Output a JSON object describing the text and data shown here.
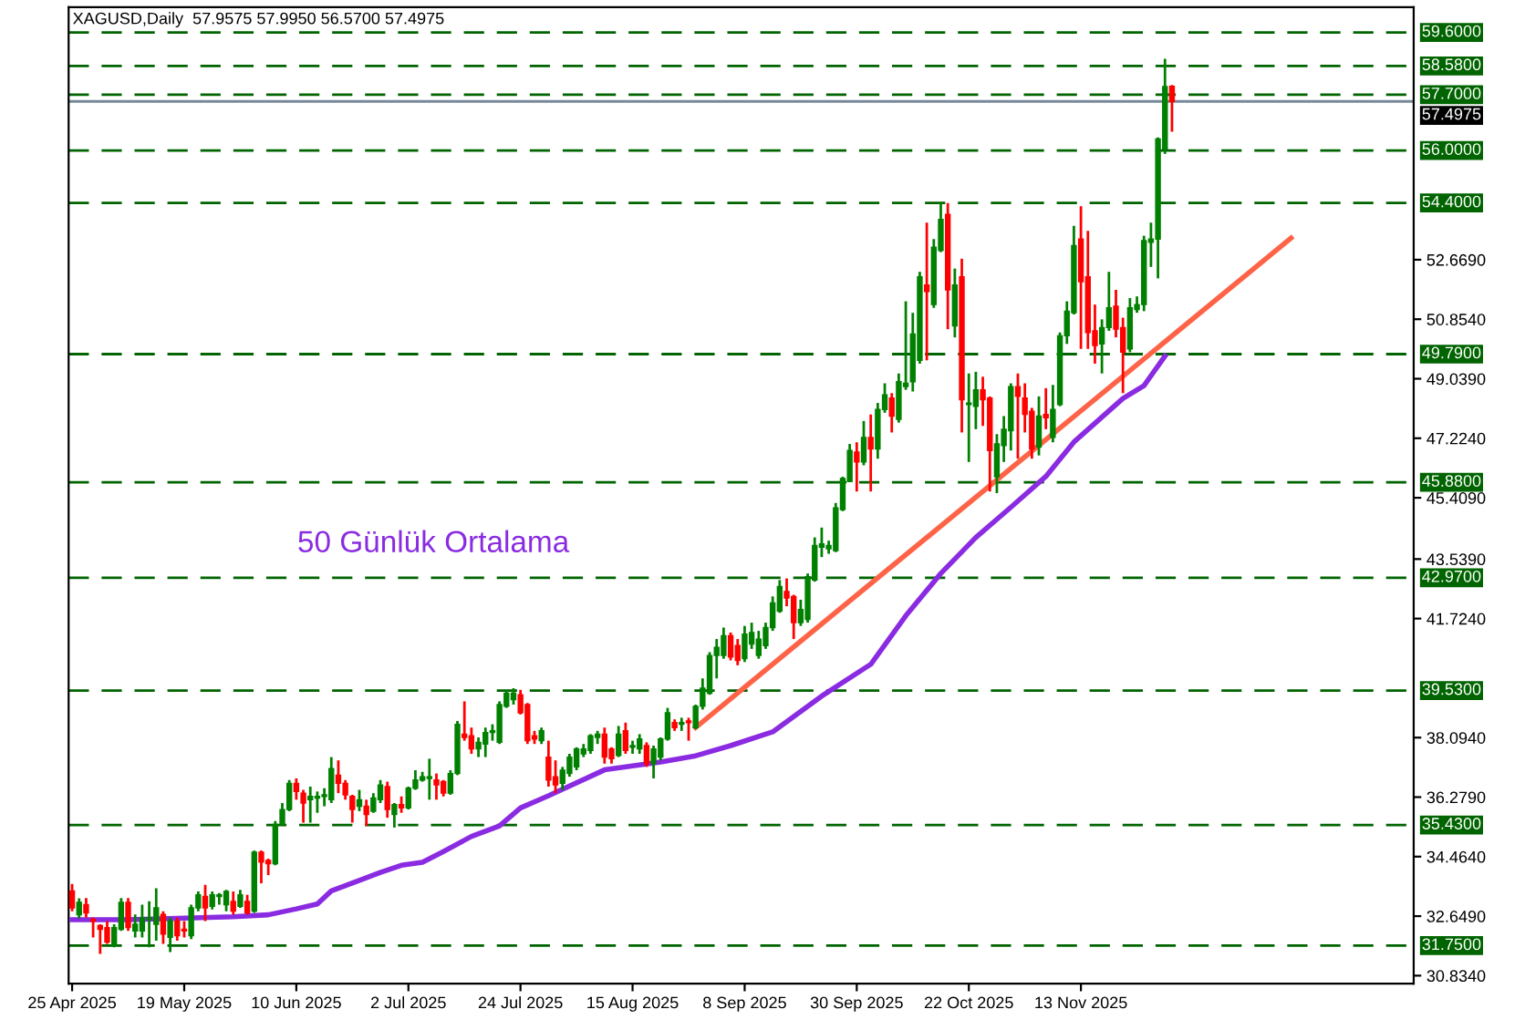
{
  "chart_data": {
    "type": "candlestick",
    "title": "XAGUSD,Daily  57.9575 57.9950 56.5700 57.4975",
    "categories": [
      "25 Apr 2025",
      null,
      null,
      null,
      null,
      null,
      null,
      null,
      null,
      null,
      null,
      null,
      null,
      null,
      null,
      null,
      "19 May 2025",
      null,
      null,
      null,
      null,
      null,
      null,
      null,
      null,
      null,
      null,
      null,
      null,
      null,
      null,
      null,
      "10 Jun 2025",
      null,
      null,
      null,
      null,
      null,
      null,
      null,
      null,
      null,
      null,
      null,
      null,
      null,
      null,
      null,
      "2 Jul 2025",
      null,
      null,
      null,
      null,
      null,
      null,
      null,
      null,
      null,
      null,
      null,
      null,
      null,
      null,
      null,
      "24 Jul 2025",
      null,
      null,
      null,
      null,
      null,
      null,
      null,
      null,
      null,
      null,
      null,
      null,
      null,
      null,
      null,
      "15 Aug 2025",
      null,
      null,
      null,
      null,
      null,
      null,
      null,
      null,
      null,
      null,
      null,
      null,
      null,
      null,
      null,
      "8 Sep 2025",
      null,
      null,
      null,
      null,
      null,
      null,
      null,
      null,
      null,
      null,
      null,
      null,
      null,
      null,
      null,
      "30 Sep 2025",
      null,
      null,
      null,
      null,
      null,
      null,
      null,
      null,
      null,
      null,
      null,
      null,
      null,
      null,
      null,
      "22 Oct 2025",
      null,
      null,
      null,
      null,
      null,
      null,
      null,
      null,
      null,
      null,
      null,
      null,
      null,
      null,
      null,
      "13 Nov 2025",
      null,
      null,
      null,
      null,
      null,
      null,
      null,
      null,
      null,
      null,
      null,
      null,
      null,
      null,
      null,
      null,
      null,
      null,
      null,
      null,
      null,
      null,
      null,
      null,
      null,
      null,
      null,
      null,
      null,
      null,
      null,
      null,
      null,
      null,
      null,
      null,
      null,
      null,
      null,
      null,
      null,
      null,
      null,
      null,
      null,
      null,
      null
    ],
    "colors": [
      "#ff0000",
      "#008000",
      "#ff0000",
      "#ff0000",
      "#ff0000",
      "#ff0000",
      "#008000",
      "#008000",
      "#ff0000",
      "#008000",
      "#008000",
      "#008000",
      "#008000",
      "#ff0000",
      "#008000",
      "#ff0000",
      "#ff0000",
      "#008000",
      "#008000",
      "#ff0000",
      "#008000",
      "#008000",
      "#008000",
      "#ff0000",
      "#008000",
      "#ff0000",
      "#008000",
      "#ff0000",
      "#ff0000",
      "#008000",
      "#008000",
      "#008000",
      "#ff0000",
      "#ff0000",
      "#008000",
      "#008000",
      "#008000",
      "#008000",
      "#ff0000",
      "#ff0000",
      "#ff0000",
      "#008000",
      "#ff0000",
      "#008000",
      "#008000",
      "#ff0000",
      "#008000",
      "#ff0000",
      "#008000",
      "#008000",
      "#008000",
      "#008000",
      "#ff0000",
      "#ff0000",
      "#008000",
      "#008000",
      "#ff0000",
      "#ff0000",
      "#008000",
      "#008000",
      "#008000",
      "#008000",
      "#008000",
      "#008000",
      "#ff0000",
      "#ff0000",
      "#ff0000",
      "#008000",
      "#ff0000",
      "#ff0000",
      "#008000",
      "#008000",
      "#008000",
      "#008000",
      "#008000",
      "#008000",
      "#ff0000",
      "#ff0000",
      "#008000",
      "#ff0000",
      "#008000",
      "#008000",
      "#ff0000",
      "#008000",
      "#008000",
      "#008000",
      "#ff0000",
      "#008000",
      "#ff0000",
      "#008000",
      "#008000",
      "#008000",
      "#008000",
      "#008000",
      "#ff0000",
      "#ff0000",
      "#008000",
      "#008000",
      "#008000",
      "#008000",
      "#008000",
      "#008000",
      "#ff0000",
      "#ff0000",
      "#008000",
      "#008000",
      "#008000",
      "#008000",
      "#008000",
      "#008000",
      "#008000",
      "#008000",
      "#ff0000",
      "#008000",
      "#ff0000",
      "#008000",
      "#008000",
      "#ff0000",
      "#008000",
      "#008000",
      "#008000",
      "#008000",
      "#ff0000",
      "#008000",
      "#008000",
      "#ff0000",
      "#008000",
      "#ff0000",
      "#008000",
      "#008000",
      "#ff0000",
      "#ff0000",
      "#008000",
      "#008000",
      "#008000",
      "#ff0000",
      "#ff0000",
      "#ff0000",
      "#008000",
      "#ff0000",
      "#008000",
      "#008000",
      "#008000",
      "#008000",
      "#ff0000",
      "#ff0000",
      "#ff0000",
      "#008000",
      "#008000",
      "#ff0000",
      "#ff0000",
      "#008000",
      "#008000",
      "#008000",
      "#008000",
      "#008000",
      "#008000",
      "#ff0000",
      null,
      null,
      null,
      null,
      null,
      null,
      null,
      null,
      null,
      null,
      null,
      null,
      null,
      null,
      null,
      null,
      null,
      null,
      null,
      null,
      null,
      null,
      null,
      null,
      null,
      null,
      null,
      null,
      null,
      null,
      null,
      null,
      null,
      null
    ],
    "ohlc": [
      [
        33.42,
        33.63,
        32.8,
        32.9
      ],
      [
        32.69,
        33.19,
        32.58,
        33.07
      ],
      [
        33.0,
        33.2,
        32.6,
        32.75
      ],
      [
        32.55,
        32.6,
        32.0,
        32.5
      ],
      [
        32.36,
        32.4,
        31.5,
        32.25
      ],
      [
        32.3,
        32.5,
        31.8,
        31.86
      ],
      [
        31.75,
        32.4,
        31.7,
        32.3
      ],
      [
        32.25,
        33.2,
        32.2,
        33.07
      ],
      [
        33.07,
        33.2,
        32.2,
        32.3
      ],
      [
        32.2,
        32.7,
        32.0,
        32.4
      ],
      [
        32.2,
        33.0,
        32.0,
        32.6
      ],
      [
        32.55,
        33.1,
        31.7,
        32.6
      ],
      [
        32.4,
        33.5,
        31.9,
        32.9
      ],
      [
        32.7,
        32.8,
        31.8,
        32.1
      ],
      [
        32.0,
        32.6,
        31.55,
        32.5
      ],
      [
        32.5,
        32.6,
        31.9,
        32.05
      ],
      [
        32.25,
        32.5,
        32.0,
        32.2
      ],
      [
        32.05,
        33.0,
        31.95,
        32.9
      ],
      [
        32.9,
        33.4,
        32.8,
        33.3
      ],
      [
        33.25,
        33.6,
        32.5,
        32.9
      ],
      [
        32.95,
        33.4,
        32.85,
        33.3
      ],
      [
        33.25,
        33.35,
        33.0,
        33.3
      ],
      [
        33.0,
        33.45,
        32.8,
        33.4
      ],
      [
        33.1,
        33.4,
        32.7,
        32.8
      ],
      [
        32.95,
        33.45,
        32.9,
        33.3
      ],
      [
        33.1,
        33.3,
        32.7,
        32.75
      ],
      [
        32.8,
        34.65,
        32.75,
        34.6
      ],
      [
        34.6,
        34.65,
        33.65,
        34.3
      ],
      [
        34.35,
        34.4,
        33.9,
        34.25
      ],
      [
        34.25,
        35.55,
        34.2,
        35.45
      ],
      [
        35.45,
        36.1,
        35.45,
        35.9
      ],
      [
        35.9,
        36.8,
        35.85,
        36.7
      ],
      [
        36.7,
        36.85,
        36.2,
        36.45
      ],
      [
        36.4,
        36.5,
        35.5,
        36.1
      ],
      [
        36.2,
        36.6,
        35.5,
        36.3
      ],
      [
        36.25,
        36.45,
        35.8,
        36.3
      ],
      [
        36.3,
        36.55,
        36.0,
        36.35
      ],
      [
        36.2,
        37.5,
        36.1,
        37.15
      ],
      [
        36.95,
        37.4,
        36.4,
        36.7
      ],
      [
        36.7,
        36.8,
        36.2,
        36.35
      ],
      [
        36.3,
        36.35,
        35.5,
        35.9
      ],
      [
        36.0,
        36.5,
        35.85,
        36.2
      ],
      [
        36.0,
        36.2,
        35.4,
        35.75
      ],
      [
        35.85,
        36.4,
        35.8,
        36.25
      ],
      [
        36.2,
        36.8,
        36.1,
        36.65
      ],
      [
        36.6,
        36.75,
        35.65,
        35.9
      ],
      [
        35.75,
        36.1,
        35.35,
        36.05
      ],
      [
        36.05,
        36.3,
        35.8,
        35.95
      ],
      [
        35.95,
        36.6,
        35.9,
        36.55
      ],
      [
        36.55,
        37.1,
        36.5,
        36.8
      ],
      [
        36.8,
        37.05,
        36.75,
        36.9
      ],
      [
        36.85,
        37.45,
        36.2,
        36.9
      ],
      [
        36.8,
        37.0,
        36.2,
        36.65
      ],
      [
        36.75,
        36.8,
        36.3,
        36.4
      ],
      [
        36.4,
        37.1,
        36.35,
        37.0
      ],
      [
        37.0,
        38.6,
        36.95,
        38.5
      ],
      [
        38.2,
        39.2,
        38.0,
        38.1
      ],
      [
        38.15,
        38.4,
        37.6,
        37.75
      ],
      [
        37.75,
        38.1,
        37.5,
        37.95
      ],
      [
        37.9,
        38.4,
        37.5,
        38.25
      ],
      [
        38.25,
        38.5,
        38.0,
        38.3
      ],
      [
        37.95,
        39.2,
        37.9,
        39.1
      ],
      [
        39.05,
        39.55,
        39.0,
        39.45
      ],
      [
        39.25,
        39.6,
        39.1,
        39.45
      ],
      [
        39.4,
        39.55,
        38.8,
        38.85
      ],
      [
        39.1,
        39.15,
        37.9,
        38.0
      ],
      [
        38.15,
        38.3,
        37.9,
        38.05
      ],
      [
        38.0,
        38.4,
        37.9,
        38.3
      ],
      [
        37.5,
        38.0,
        36.6,
        36.8
      ],
      [
        36.9,
        37.4,
        36.4,
        36.65
      ],
      [
        36.7,
        37.2,
        36.5,
        37.1
      ],
      [
        37.0,
        37.6,
        36.9,
        37.5
      ],
      [
        37.2,
        37.8,
        37.1,
        37.75
      ],
      [
        37.6,
        37.9,
        37.5,
        37.75
      ],
      [
        37.7,
        38.2,
        37.6,
        38.15
      ],
      [
        38.1,
        38.3,
        37.9,
        38.2
      ],
      [
        38.2,
        38.4,
        37.3,
        37.5
      ],
      [
        37.75,
        37.8,
        37.3,
        37.45
      ],
      [
        37.55,
        38.45,
        37.5,
        38.2
      ],
      [
        38.3,
        38.55,
        37.6,
        37.7
      ],
      [
        37.8,
        38.0,
        37.6,
        37.85
      ],
      [
        37.75,
        38.2,
        37.6,
        38.05
      ],
      [
        37.85,
        37.95,
        37.2,
        37.3
      ],
      [
        37.3,
        37.85,
        36.85,
        37.75
      ],
      [
        37.5,
        38.1,
        37.4,
        38.05
      ],
      [
        38.05,
        39.0,
        38.0,
        38.85
      ],
      [
        38.55,
        38.65,
        38.3,
        38.4
      ],
      [
        38.5,
        38.7,
        38.3,
        38.55
      ],
      [
        38.6,
        38.7,
        38.0,
        38.55
      ],
      [
        38.4,
        39.1,
        38.35,
        39.05
      ],
      [
        39.05,
        39.9,
        38.95,
        39.6
      ],
      [
        39.45,
        40.7,
        39.4,
        40.6
      ],
      [
        40.6,
        41.1,
        39.9,
        40.85
      ],
      [
        40.6,
        41.45,
        40.5,
        41.2
      ],
      [
        41.2,
        41.3,
        40.45,
        40.55
      ],
      [
        40.9,
        41.1,
        40.3,
        40.45
      ],
      [
        40.5,
        41.5,
        40.4,
        41.25
      ],
      [
        40.95,
        41.6,
        40.8,
        41.3
      ],
      [
        40.6,
        41.35,
        40.5,
        41.1
      ],
      [
        40.9,
        41.6,
        40.8,
        41.45
      ],
      [
        41.45,
        42.4,
        41.35,
        42.2
      ],
      [
        41.95,
        42.9,
        41.9,
        42.7
      ],
      [
        42.55,
        42.95,
        42.1,
        42.35
      ],
      [
        42.4,
        42.45,
        41.1,
        41.6
      ],
      [
        41.6,
        42.3,
        41.5,
        42.0
      ],
      [
        41.7,
        43.1,
        41.6,
        43.0
      ],
      [
        42.9,
        44.2,
        42.85,
        43.95
      ],
      [
        43.9,
        44.5,
        43.6,
        44.0
      ],
      [
        43.85,
        44.1,
        43.7,
        43.95
      ],
      [
        43.8,
        45.25,
        43.75,
        45.1
      ],
      [
        45.05,
        46.05,
        45.0,
        46.0
      ],
      [
        45.9,
        47.05,
        45.9,
        46.85
      ],
      [
        46.8,
        47.1,
        45.6,
        46.5
      ],
      [
        46.5,
        47.75,
        46.4,
        47.25
      ],
      [
        47.25,
        47.95,
        45.6,
        46.9
      ],
      [
        46.9,
        48.3,
        46.6,
        48.1
      ],
      [
        48.1,
        48.9,
        48.0,
        48.55
      ],
      [
        48.45,
        48.6,
        47.4,
        47.9
      ],
      [
        47.8,
        49.2,
        47.7,
        48.95
      ],
      [
        48.8,
        51.4,
        48.7,
        48.9
      ],
      [
        48.95,
        51.05,
        48.65,
        50.4
      ],
      [
        49.6,
        52.3,
        49.5,
        52.15
      ],
      [
        51.9,
        53.8,
        49.6,
        51.7
      ],
      [
        51.3,
        53.3,
        51.2,
        53.05
      ],
      [
        52.95,
        54.4,
        52.9,
        53.9
      ],
      [
        54.05,
        54.4,
        50.55,
        51.75
      ],
      [
        50.65,
        52.4,
        50.3,
        51.9
      ],
      [
        52.15,
        52.7,
        47.4,
        48.4
      ],
      [
        48.25,
        49.2,
        46.5,
        48.3
      ],
      [
        48.2,
        49.25,
        47.5,
        48.7
      ],
      [
        48.7,
        49.1,
        47.6,
        48.4
      ],
      [
        48.45,
        48.5,
        45.6,
        46.85
      ],
      [
        46.05,
        47.35,
        45.55,
        47.05
      ],
      [
        47.0,
        47.9,
        46.5,
        47.5
      ],
      [
        47.45,
        48.9,
        46.85,
        48.8
      ],
      [
        48.8,
        49.2,
        46.6,
        48.5
      ],
      [
        48.45,
        48.9,
        47.4,
        47.95
      ],
      [
        48.05,
        48.15,
        46.6,
        46.9
      ],
      [
        46.95,
        48.5,
        46.7,
        47.9
      ],
      [
        47.95,
        48.75,
        47.5,
        47.85
      ],
      [
        47.25,
        48.85,
        47.1,
        48.1
      ],
      [
        48.25,
        50.45,
        48.2,
        50.35
      ],
      [
        50.35,
        51.4,
        50.1,
        51.1
      ],
      [
        51.05,
        53.7,
        51.0,
        53.1
      ],
      [
        53.3,
        54.3,
        49.95,
        52.0
      ],
      [
        52.15,
        53.55,
        49.95,
        50.45
      ],
      [
        50.5,
        51.3,
        49.5,
        50.05
      ],
      [
        50.1,
        50.85,
        49.2,
        50.6
      ],
      [
        50.6,
        52.3,
        50.5,
        51.2
      ],
      [
        51.25,
        51.75,
        50.3,
        50.55
      ],
      [
        50.6,
        50.9,
        48.6,
        49.85
      ],
      [
        49.95,
        51.5,
        49.85,
        51.2
      ],
      [
        51.15,
        51.55,
        51.05,
        51.3
      ],
      [
        51.3,
        53.4,
        51.1,
        53.25
      ],
      [
        53.2,
        53.8,
        52.45,
        53.3
      ],
      [
        53.3,
        56.4,
        52.1,
        56.35
      ],
      [
        56.05,
        58.8,
        55.9,
        57.95
      ],
      [
        57.9575,
        57.995,
        56.57,
        57.4975
      ],
      null,
      null,
      null,
      null,
      null,
      null,
      null,
      null,
      null,
      null,
      null,
      null,
      null,
      null,
      null,
      null,
      null,
      null,
      null,
      null,
      null,
      null,
      null,
      null,
      null,
      null,
      null,
      null,
      null,
      null,
      null,
      null,
      null,
      null
    ],
    "series": [
      {
        "type": "line",
        "name": "50 Günlük Ortalama",
        "color": "#8a2be2",
        "values": [
          32.54,
          null,
          null,
          null,
          null,
          null,
          null,
          null,
          32.54,
          null,
          null,
          null,
          null,
          null,
          null,
          null,
          null,
          null,
          null,
          null,
          null,
          null,
          null,
          32.63,
          null,
          null,
          null,
          null,
          32.69,
          null,
          null,
          null,
          32.87,
          null,
          null,
          33.02,
          null,
          33.42,
          null,
          null,
          null,
          33.74,
          null,
          null,
          33.98,
          null,
          null,
          34.2,
          null,
          null,
          34.29,
          null,
          null,
          34.62,
          null,
          null,
          null,
          35.08,
          null,
          null,
          null,
          35.4,
          null,
          null,
          35.95,
          null,
          null,
          null,
          36.32,
          null,
          null,
          null,
          null,
          null,
          null,
          null,
          37.11,
          null,
          null,
          null,
          null,
          null,
          null,
          null,
          37.35,
          null,
          null,
          null,
          null,
          37.54,
          null,
          null,
          null,
          null,
          37.85,
          null,
          null,
          null,
          null,
          null,
          38.27,
          null,
          null,
          null,
          null,
          null,
          null,
          39.36,
          null,
          null,
          null,
          null,
          null,
          null,
          40.33,
          null,
          null,
          null,
          null,
          41.81,
          null,
          null,
          null,
          null,
          43.1,
          null,
          null,
          null,
          null,
          44.2,
          null,
          null,
          null,
          null,
          45.12,
          null,
          null,
          null,
          null,
          46.06,
          null,
          null,
          null,
          47.11,
          null,
          null,
          null,
          null,
          null,
          null,
          48.44,
          null,
          null,
          48.83,
          null,
          null,
          49.73,
          null,
          null,
          null,
          null,
          null,
          null,
          null,
          null,
          null,
          null,
          null,
          null,
          null,
          null,
          null,
          null,
          null,
          null,
          null,
          null,
          null,
          null,
          null,
          null,
          null,
          null,
          null,
          null,
          null,
          null,
          null,
          null,
          null,
          null,
          null
        ]
      },
      {
        "type": "line",
        "color": "#ff6347",
        "values": [
          null,
          null,
          null,
          null,
          null,
          null,
          null,
          null,
          null,
          null,
          null,
          null,
          null,
          null,
          null,
          null,
          null,
          null,
          null,
          null,
          null,
          null,
          null,
          null,
          null,
          null,
          null,
          null,
          null,
          null,
          null,
          null,
          null,
          null,
          null,
          null,
          null,
          null,
          null,
          null,
          null,
          null,
          null,
          null,
          null,
          null,
          null,
          null,
          null,
          null,
          null,
          null,
          null,
          null,
          null,
          null,
          null,
          null,
          null,
          null,
          null,
          null,
          null,
          null,
          null,
          null,
          null,
          null,
          null,
          null,
          null,
          null,
          null,
          null,
          null,
          null,
          null,
          null,
          null,
          null,
          null,
          null,
          null,
          null,
          null,
          null,
          null,
          null,
          null,
          38.4,
          null,
          null,
          null,
          null,
          null,
          null,
          null,
          null,
          null,
          null,
          null,
          null,
          null,
          null,
          null,
          null,
          null,
          null,
          null,
          null,
          null,
          null,
          null,
          null,
          null,
          null,
          null,
          null,
          null,
          null,
          null,
          null,
          null,
          null,
          null,
          null,
          null,
          null,
          null,
          null,
          null,
          null,
          null,
          null,
          null,
          null,
          null,
          null,
          null,
          null,
          null,
          null,
          null,
          null,
          null,
          null,
          null,
          null,
          null,
          null,
          null,
          null,
          null,
          null,
          null,
          null,
          null,
          null,
          null,
          null,
          null,
          null,
          null,
          null,
          null,
          null,
          null,
          null,
          null,
          null,
          null,
          null,
          null,
          null,
          53.33,
          null,
          null,
          null,
          null,
          null,
          null,
          null,
          null,
          null,
          null,
          null,
          null,
          null,
          null,
          null,
          null,
          null
        ]
      }
    ],
    "ylim": [
      30.59,
      60.37
    ],
    "yticks": [
      {
        "value": 30.834,
        "label": "30.8340"
      },
      {
        "value": 32.649,
        "label": "32.6490"
      },
      {
        "value": 34.464,
        "label": "34.4640"
      },
      {
        "value": 36.279,
        "label": "36.2790"
      },
      {
        "value": 38.094,
        "label": "38.0940"
      },
      {
        "value": 41.724,
        "label": "41.7240"
      },
      {
        "value": 43.539,
        "label": "43.5390"
      },
      {
        "value": 45.409,
        "label": "45.4090"
      },
      {
        "value": 47.224,
        "label": "47.2240"
      },
      {
        "value": 49.039,
        "label": "49.0390"
      },
      {
        "value": 50.854,
        "label": "50.8540"
      },
      {
        "value": 52.669,
        "label": "52.6690"
      }
    ],
    "ref_lines": [
      {
        "axis": "y",
        "value": 59.6,
        "label": "59.6000",
        "color": "#006400",
        "line_style": "dashed"
      },
      {
        "axis": "y",
        "value": 58.58,
        "label": "58.5800",
        "color": "#006400",
        "line_style": "dashed"
      },
      {
        "axis": "y",
        "value": 57.7,
        "label": "57.7000",
        "color": "#006400",
        "line_style": "dashed"
      },
      {
        "axis": "y",
        "value": 57.4975,
        "label": "57.4975",
        "color": "#778899",
        "line_style": "solid"
      },
      {
        "axis": "y",
        "value": 56.0,
        "label": "56.0000",
        "color": "#006400",
        "line_style": "dashed"
      },
      {
        "axis": "y",
        "value": 54.4,
        "label": "54.4000",
        "color": "#006400",
        "line_style": "dashed"
      },
      {
        "axis": "y",
        "value": 49.79,
        "label": "49.7900",
        "color": "#006400",
        "line_style": "dashed"
      },
      {
        "axis": "y",
        "value": 45.88,
        "label": "45.8800",
        "color": "#006400",
        "line_style": "dashed"
      },
      {
        "axis": "y",
        "value": 42.97,
        "label": "42.9700",
        "color": "#006400",
        "line_style": "dashed"
      },
      {
        "axis": "y",
        "value": 39.53,
        "label": "39.5300",
        "color": "#006400",
        "line_style": "dashed"
      },
      {
        "axis": "y",
        "value": 35.43,
        "label": "35.4300",
        "color": "#006400",
        "line_style": "dashed"
      },
      {
        "axis": "y",
        "value": 31.75,
        "label": "31.7500",
        "color": "#006400",
        "line_style": "dashed"
      }
    ],
    "grid": false,
    "legend": false
  }
}
